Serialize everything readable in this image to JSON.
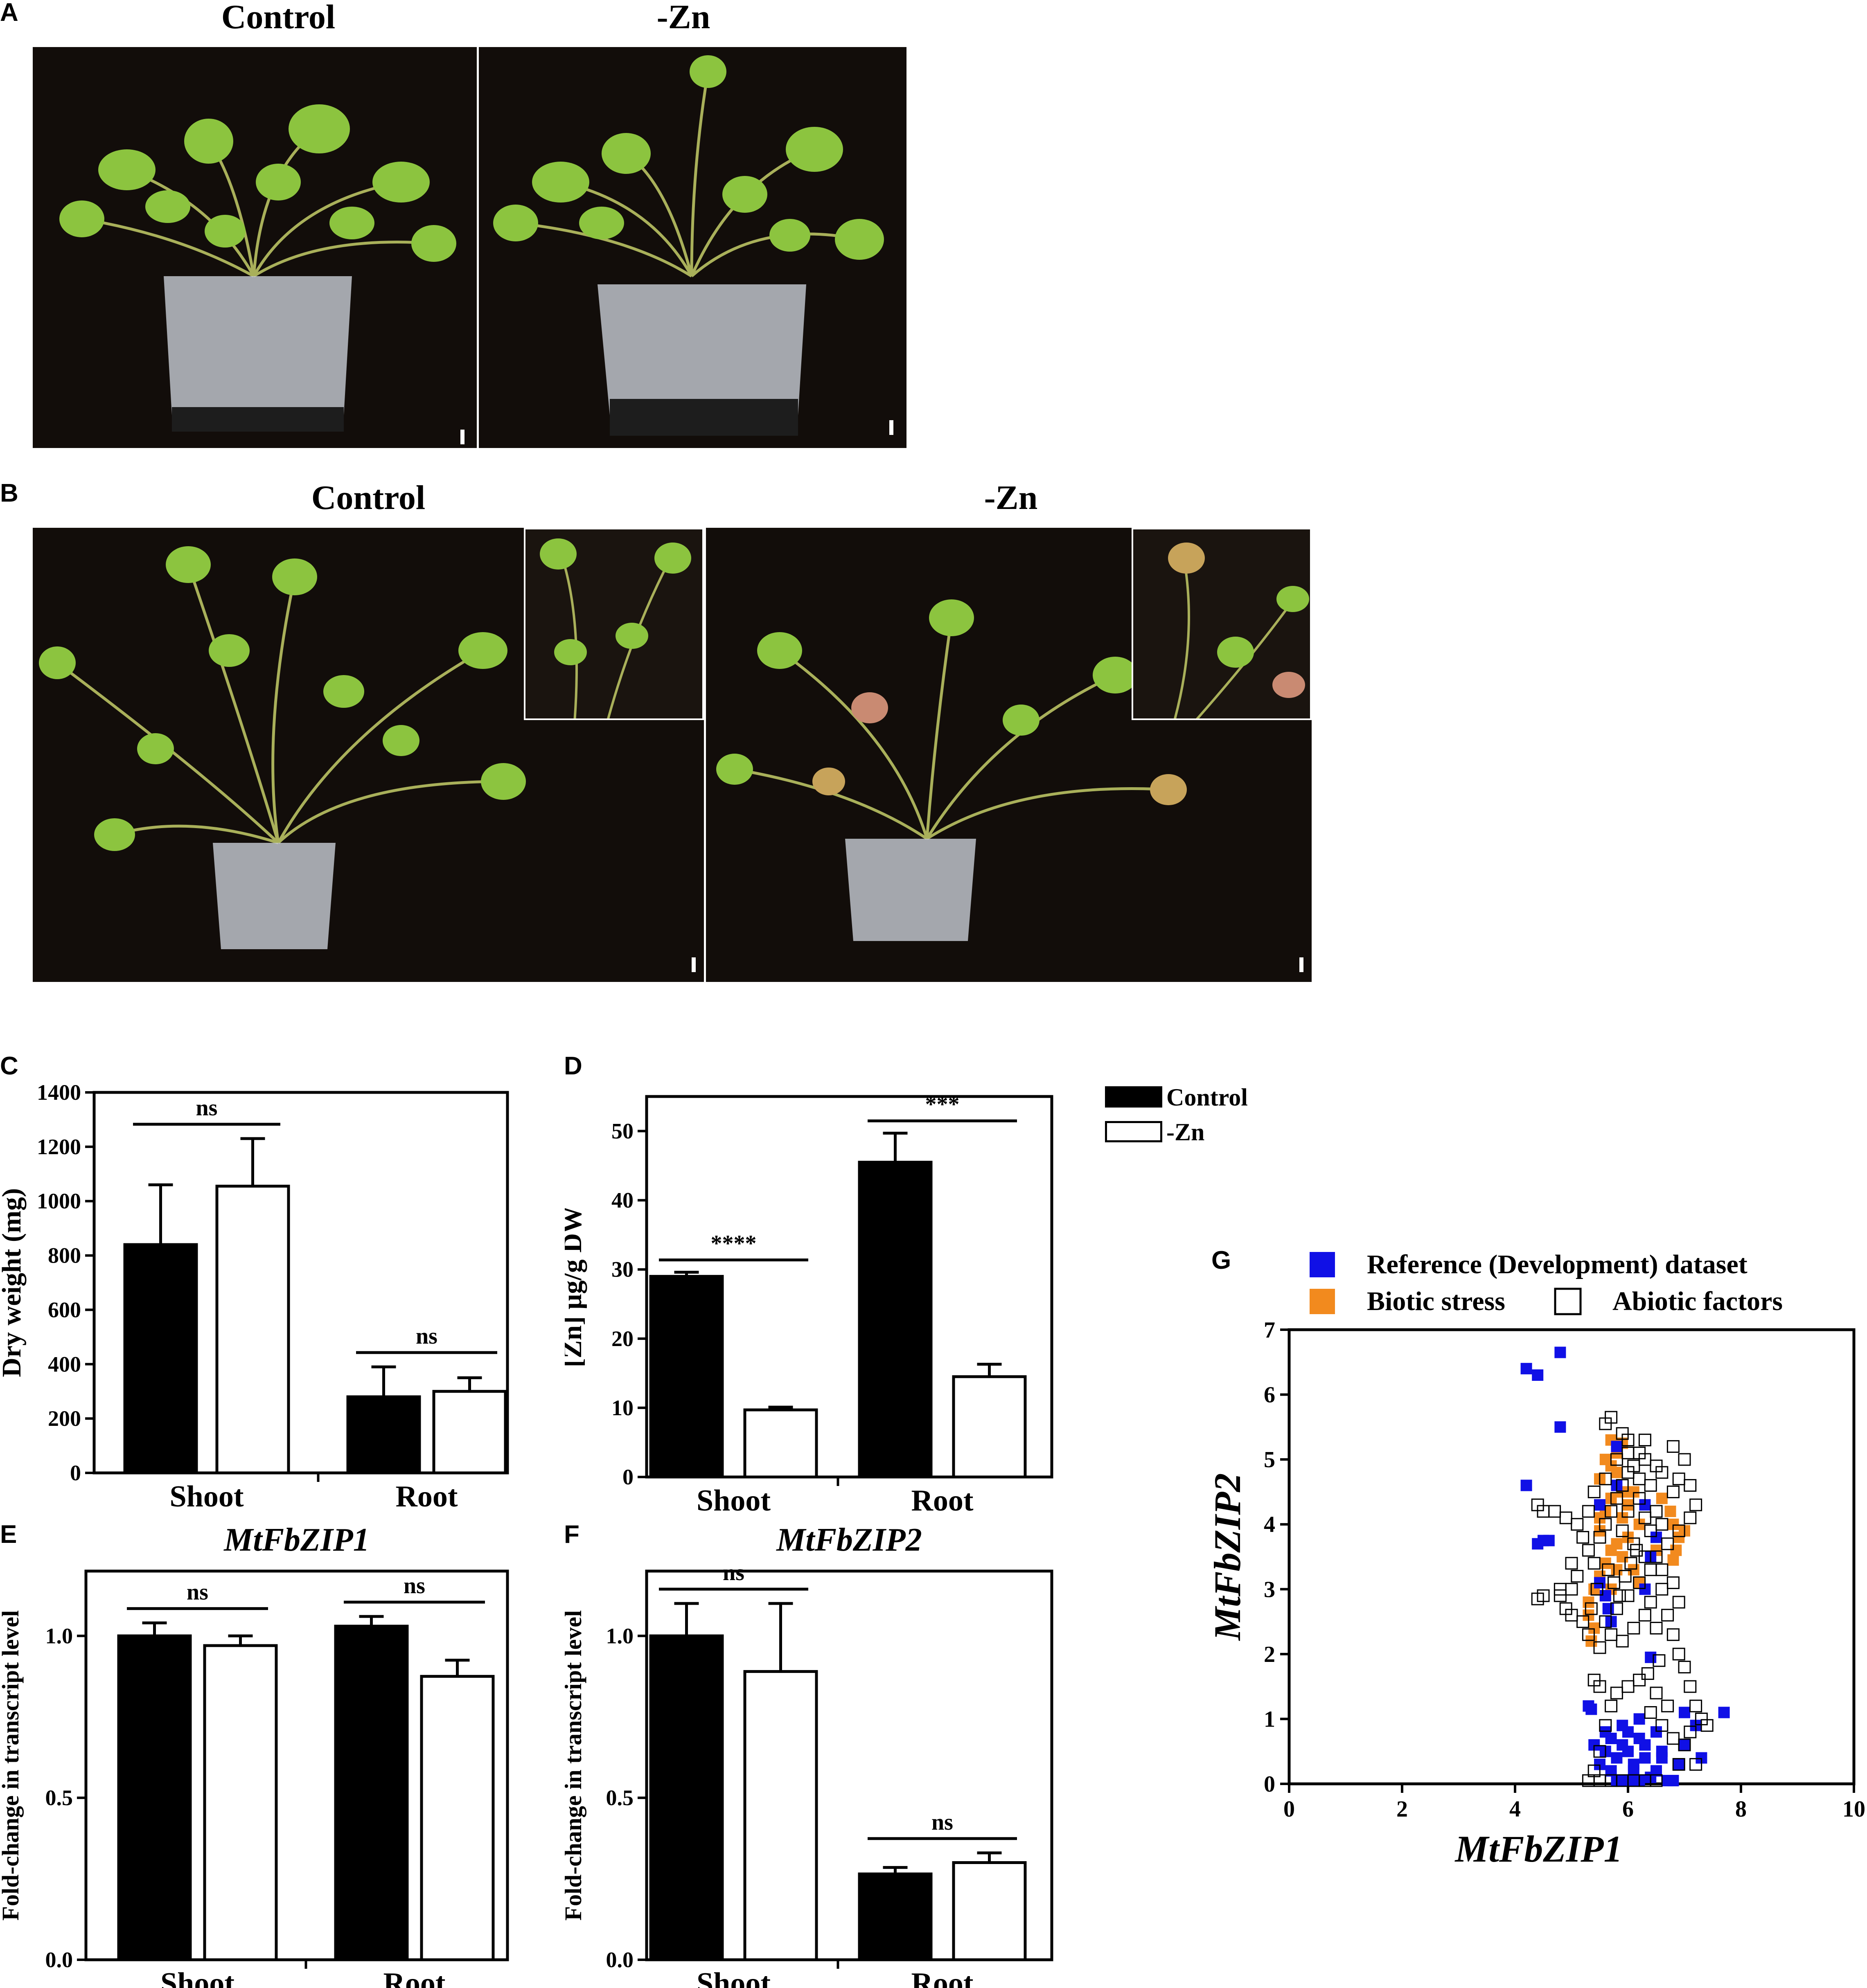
{
  "panel_letters": {
    "A": "A",
    "B": "B",
    "C": "C",
    "D": "D",
    "E": "E",
    "F": "F",
    "G": "G"
  },
  "panel_a": {
    "titles": [
      "Control",
      "-Zn"
    ]
  },
  "panel_b": {
    "titles": [
      "Control",
      "-Zn"
    ]
  },
  "legend_cd": {
    "items": [
      {
        "label": "Control",
        "fill": "#000000"
      },
      {
        "label": "-Zn",
        "fill": "#ffffff"
      }
    ]
  },
  "chart_data": [
    {
      "id": "C",
      "type": "bar",
      "categories": [
        "Shoot",
        "Root"
      ],
      "ylabel": "Dry weight (mg)",
      "ylim": [
        0,
        1400
      ],
      "yticks": [
        0,
        200,
        400,
        600,
        800,
        1000,
        1200,
        1400
      ],
      "series": [
        {
          "name": "Control",
          "values": [
            840,
            280
          ],
          "errors": [
            220,
            110
          ],
          "color": "#000000"
        },
        {
          "name": "-Zn",
          "values": [
            1055,
            300
          ],
          "errors": [
            175,
            50
          ],
          "color": "#ffffff"
        }
      ],
      "significance": [
        "ns",
        "ns"
      ]
    },
    {
      "id": "D",
      "type": "bar",
      "categories": [
        "Shoot",
        "Root"
      ],
      "ylabel": "[Zn] µg/g DW",
      "ylim": [
        0,
        55
      ],
      "yticks": [
        0,
        10,
        20,
        30,
        40,
        50
      ],
      "series": [
        {
          "name": "Control",
          "values": [
            29,
            45.5
          ],
          "errors": [
            0.6,
            4.2
          ],
          "color": "#000000"
        },
        {
          "name": "-Zn",
          "values": [
            9.7,
            14.5
          ],
          "errors": [
            0.4,
            1.8
          ],
          "color": "#ffffff"
        }
      ],
      "significance": [
        "****",
        "***"
      ]
    },
    {
      "id": "E",
      "type": "bar",
      "title": "MtFbZIP1",
      "categories": [
        "Shoot",
        "Root"
      ],
      "ylabel": "Fold-change in transcript level",
      "ylim": [
        0,
        1.2
      ],
      "yticks": [
        0.0,
        0.5,
        1.0
      ],
      "ytick_labels": [
        "0.0",
        "0.5",
        "1.0"
      ],
      "series": [
        {
          "name": "Control",
          "values": [
            1.0,
            1.03
          ],
          "errors": [
            0.04,
            0.03
          ],
          "color": "#000000"
        },
        {
          "name": "-Zn",
          "values": [
            0.97,
            0.875
          ],
          "errors": [
            0.03,
            0.05
          ],
          "color": "#ffffff"
        }
      ],
      "significance": [
        "ns",
        "ns"
      ]
    },
    {
      "id": "F",
      "type": "bar",
      "title": "MtFbZIP2",
      "categories": [
        "Shoot",
        "Root"
      ],
      "ylabel": "Fold-change in transcript level",
      "ylim": [
        0,
        1.2
      ],
      "yticks": [
        0.0,
        0.5,
        1.0
      ],
      "ytick_labels": [
        "0.0",
        "0.5",
        "1.0"
      ],
      "series": [
        {
          "name": "Control",
          "values": [
            1.0,
            0.265
          ],
          "errors": [
            0.1,
            0.02
          ],
          "color": "#000000"
        },
        {
          "name": "-Zn",
          "values": [
            0.89,
            0.3
          ],
          "errors": [
            0.21,
            0.03
          ],
          "color": "#ffffff"
        }
      ],
      "significance": [
        "ns",
        "ns"
      ]
    },
    {
      "id": "G",
      "type": "scatter",
      "xlabel": "MtFbZIP1",
      "ylabel": "MtFbZIP2",
      "xlim": [
        0,
        10
      ],
      "ylim": [
        0,
        7
      ],
      "xticks": [
        0,
        2,
        4,
        6,
        8,
        10
      ],
      "yticks": [
        0,
        1,
        2,
        3,
        4,
        5,
        6,
        7
      ],
      "legend": [
        {
          "label": "Reference (Development) dataset",
          "color": "#1010e6",
          "style": "filled"
        },
        {
          "label": "Biotic stress",
          "color": "#f28a1e",
          "style": "filled"
        },
        {
          "label": "Abiotic factors",
          "color": "#000000",
          "style": "open"
        }
      ],
      "series": [
        {
          "name": "Reference (Development) dataset",
          "color": "#1010e6",
          "style": "filled",
          "points": [
            [
              4.2,
              6.4
            ],
            [
              4.4,
              6.3
            ],
            [
              4.8,
              6.65
            ],
            [
              4.2,
              4.6
            ],
            [
              4.8,
              5.5
            ],
            [
              4.6,
              3.75
            ],
            [
              4.4,
              3.7
            ],
            [
              4.5,
              3.75
            ],
            [
              5.3,
              1.2
            ],
            [
              5.35,
              1.15
            ],
            [
              5.6,
              2.9
            ],
            [
              5.5,
              3.1
            ],
            [
              5.65,
              2.7
            ],
            [
              5.7,
              2.5
            ],
            [
              5.5,
              4.3
            ],
            [
              5.8,
              5.2
            ],
            [
              5.8,
              4.6
            ],
            [
              6.3,
              4.3
            ],
            [
              6.5,
              3.8
            ],
            [
              6.4,
              3.5
            ],
            [
              6.3,
              3.0
            ],
            [
              6.4,
              1.95
            ],
            [
              7.0,
              1.1
            ],
            [
              7.2,
              0.9
            ],
            [
              7.0,
              0.6
            ],
            [
              7.3,
              0.4
            ],
            [
              7.7,
              1.1
            ],
            [
              6.9,
              0.3
            ],
            [
              6.6,
              0.5
            ],
            [
              6.5,
              0.8
            ],
            [
              6.2,
              0.7
            ],
            [
              6.3,
              0.4
            ],
            [
              6.1,
              0.3
            ],
            [
              5.9,
              0.6
            ],
            [
              5.8,
              0.4
            ],
            [
              5.7,
              0.2
            ],
            [
              5.6,
              0.8
            ],
            [
              5.5,
              0.3
            ],
            [
              5.6,
              0.5
            ],
            [
              6.0,
              0.5
            ],
            [
              6.1,
              0.2
            ],
            [
              6.3,
              0.6
            ],
            [
              6.4,
              0.1
            ],
            [
              6.5,
              0.2
            ],
            [
              6.7,
              0.05
            ],
            [
              6.8,
              0.05
            ],
            [
              6.0,
              0.05
            ],
            [
              5.8,
              0.05
            ],
            [
              6.2,
              0.05
            ],
            [
              5.9,
              0.9
            ],
            [
              6.0,
              0.8
            ],
            [
              6.2,
              1.0
            ],
            [
              6.6,
              0.4
            ],
            [
              5.4,
              0.6
            ],
            [
              5.7,
              0.7
            ]
          ]
        },
        {
          "name": "Biotic stress",
          "color": "#f28a1e",
          "style": "filled",
          "points": [
            [
              5.7,
              5.3
            ],
            [
              5.8,
              5.1
            ],
            [
              5.9,
              5.25
            ],
            [
              5.7,
              4.9
            ],
            [
              5.8,
              4.8
            ],
            [
              5.9,
              4.5
            ],
            [
              5.7,
              4.4
            ],
            [
              5.6,
              4.2
            ],
            [
              5.5,
              4.1
            ],
            [
              5.9,
              4.1
            ],
            [
              6.0,
              4.3
            ],
            [
              6.1,
              4.5
            ],
            [
              6.2,
              4.0
            ],
            [
              6.0,
              3.8
            ],
            [
              5.8,
              3.7
            ],
            [
              5.7,
              3.6
            ],
            [
              5.6,
              3.4
            ],
            [
              5.5,
              3.2
            ],
            [
              5.4,
              3.0
            ],
            [
              5.3,
              2.8
            ],
            [
              5.3,
              2.6
            ],
            [
              5.4,
              2.4
            ],
            [
              5.35,
              2.2
            ],
            [
              5.6,
              2.9
            ],
            [
              5.7,
              3.0
            ],
            [
              5.8,
              3.3
            ],
            [
              5.9,
              3.5
            ],
            [
              6.8,
              4.0
            ],
            [
              6.9,
              3.8
            ],
            [
              6.85,
              3.6
            ],
            [
              6.8,
              3.45
            ],
            [
              6.75,
              4.2
            ],
            [
              7.0,
              3.9
            ],
            [
              6.6,
              4.4
            ],
            [
              6.5,
              3.6
            ],
            [
              5.6,
              5.0
            ],
            [
              5.5,
              4.7
            ],
            [
              6.1,
              3.3
            ],
            [
              6.2,
              3.1
            ],
            [
              5.5,
              3.9
            ]
          ]
        },
        {
          "name": "Abiotic factors",
          "color": "#000000",
          "style": "open",
          "points": [
            [
              5.6,
              5.55
            ],
            [
              5.7,
              5.65
            ],
            [
              5.9,
              5.4
            ],
            [
              6.0,
              5.3
            ],
            [
              6.3,
              5.0
            ],
            [
              6.5,
              4.9
            ],
            [
              6.6,
              4.8
            ],
            [
              6.8,
              5.2
            ],
            [
              7.0,
              5.0
            ],
            [
              6.9,
              4.7
            ],
            [
              6.8,
              4.5
            ],
            [
              7.1,
              4.6
            ],
            [
              7.2,
              4.3
            ],
            [
              7.1,
              4.1
            ],
            [
              6.9,
              3.9
            ],
            [
              6.7,
              3.7
            ],
            [
              6.5,
              3.5
            ],
            [
              6.6,
              3.3
            ],
            [
              6.8,
              3.1
            ],
            [
              6.9,
              2.8
            ],
            [
              6.7,
              2.6
            ],
            [
              6.5,
              2.4
            ],
            [
              6.8,
              2.3
            ],
            [
              6.9,
              2.0
            ],
            [
              7.0,
              1.8
            ],
            [
              7.1,
              1.5
            ],
            [
              7.2,
              1.2
            ],
            [
              7.3,
              1.0
            ],
            [
              7.1,
              0.8
            ],
            [
              7.0,
              0.6
            ],
            [
              6.8,
              0.7
            ],
            [
              6.6,
              0.9
            ],
            [
              6.4,
              1.1
            ],
            [
              6.5,
              1.4
            ],
            [
              6.2,
              1.6
            ],
            [
              6.0,
              1.5
            ],
            [
              5.8,
              1.4
            ],
            [
              5.4,
              1.6
            ],
            [
              5.5,
              1.5
            ],
            [
              5.7,
              1.2
            ],
            [
              5.6,
              0.9
            ],
            [
              5.5,
              0.5
            ],
            [
              5.4,
              0.2
            ],
            [
              5.3,
              0.05
            ],
            [
              5.5,
              0.05
            ],
            [
              5.7,
              0.05
            ],
            [
              5.9,
              0.05
            ],
            [
              6.1,
              0.05
            ],
            [
              6.3,
              0.05
            ],
            [
              6.5,
              0.05
            ],
            [
              5.0,
              3.0
            ],
            [
              4.8,
              2.9
            ],
            [
              4.5,
              2.9
            ],
            [
              4.4,
              2.85
            ],
            [
              4.8,
              3.0
            ],
            [
              4.9,
              2.7
            ],
            [
              5.0,
              2.6
            ],
            [
              4.4,
              4.3
            ],
            [
              4.5,
              4.2
            ],
            [
              4.7,
              4.2
            ],
            [
              4.9,
              4.1
            ],
            [
              5.1,
              4.0
            ],
            [
              5.2,
              3.8
            ],
            [
              5.3,
              3.6
            ],
            [
              5.4,
              3.4
            ],
            [
              5.5,
              3.8
            ],
            [
              5.6,
              4.0
            ],
            [
              5.7,
              4.2
            ],
            [
              5.8,
              4.4
            ],
            [
              5.9,
              4.6
            ],
            [
              6.0,
              4.8
            ],
            [
              6.1,
              4.9
            ],
            [
              6.2,
              5.1
            ],
            [
              6.3,
              5.3
            ],
            [
              6.4,
              4.6
            ],
            [
              6.2,
              4.4
            ],
            [
              6.0,
              4.2
            ],
            [
              5.9,
              3.9
            ],
            [
              6.1,
              3.7
            ],
            [
              6.3,
              3.5
            ],
            [
              6.4,
              3.3
            ],
            [
              6.2,
              3.1
            ],
            [
              6.0,
              2.9
            ],
            [
              5.8,
              2.7
            ],
            [
              5.6,
              2.5
            ],
            [
              5.7,
              2.3
            ],
            [
              5.9,
              2.2
            ],
            [
              6.1,
              2.4
            ],
            [
              6.3,
              2.6
            ],
            [
              6.4,
              2.8
            ],
            [
              6.6,
              3.0
            ],
            [
              5.5,
              2.1
            ],
            [
              5.3,
              2.3
            ],
            [
              5.2,
              2.5
            ],
            [
              5.1,
              3.2
            ],
            [
              5.0,
              3.4
            ],
            [
              5.3,
              4.2
            ],
            [
              5.4,
              4.5
            ],
            [
              5.6,
              4.7
            ],
            [
              5.8,
              5.0
            ],
            [
              6.0,
              5.1
            ],
            [
              6.2,
              4.7
            ],
            [
              6.5,
              4.2
            ],
            [
              6.6,
              4.0
            ],
            [
              6.4,
              3.9
            ],
            [
              6.3,
              4.1
            ],
            [
              5.75,
              3.1
            ],
            [
              5.85,
              2.9
            ],
            [
              5.95,
              3.2
            ],
            [
              6.05,
              3.4
            ],
            [
              6.15,
              3.6
            ],
            [
              5.65,
              3.3
            ],
            [
              5.45,
              3.0
            ],
            [
              5.35,
              2.7
            ],
            [
              6.55,
              1.9
            ],
            [
              6.35,
              1.7
            ],
            [
              6.7,
              1.2
            ],
            [
              7.2,
              0.3
            ],
            [
              7.4,
              0.9
            ],
            [
              6.9,
              0.3
            ]
          ]
        }
      ]
    }
  ]
}
